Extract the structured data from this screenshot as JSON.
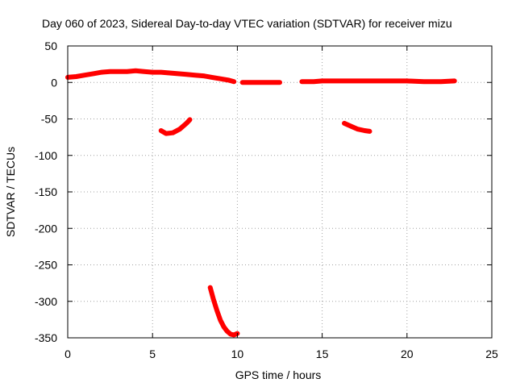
{
  "chart_data": {
    "type": "scatter",
    "title": "Day 060 of 2023, Sidereal Day-to-day VTEC variation (SDTVAR) for receiver mizu",
    "xlabel": "GPS time / hours",
    "ylabel": "SDTVAR / TECUs",
    "xlim": [
      0,
      25
    ],
    "ylim": [
      -350,
      50
    ],
    "xticks": [
      0,
      5,
      10,
      15,
      20,
      25
    ],
    "xtick_labels": [
      "0",
      "5",
      "10",
      "15",
      "20",
      "25"
    ],
    "yticks": [
      50,
      0,
      -50,
      -100,
      -150,
      -200,
      -250,
      -300,
      -350
    ],
    "ytick_labels": [
      "50",
      "0",
      "-50",
      "-100",
      "-150",
      "-200",
      "-250",
      "-300",
      "-350"
    ],
    "grid": true,
    "series_color": "#ff0000",
    "series": [
      {
        "name": "segment-1",
        "x": [
          0.0,
          0.5,
          1.0,
          1.5,
          2.0,
          2.5,
          3.0,
          3.5,
          4.0,
          4.5,
          5.0,
          5.5,
          6.0,
          6.5,
          7.0,
          7.5,
          8.0,
          8.5,
          9.0,
          9.5,
          9.8
        ],
        "y": [
          7,
          8,
          10,
          12,
          14,
          15,
          15,
          15,
          16,
          15,
          14,
          14,
          13,
          12,
          11,
          10,
          9,
          7,
          5,
          3,
          1
        ]
      },
      {
        "name": "segment-2",
        "x": [
          10.3,
          11.0,
          11.5,
          12.0,
          12.5
        ],
        "y": [
          0,
          0,
          0,
          0,
          0
        ]
      },
      {
        "name": "segment-3",
        "x": [
          13.8,
          14.5,
          15.0,
          16.0,
          17.0,
          18.0,
          19.0,
          20.0,
          21.0,
          22.0,
          22.8
        ],
        "y": [
          1,
          1,
          2,
          2,
          2,
          2,
          2,
          2,
          1,
          1,
          2
        ]
      },
      {
        "name": "segment-4",
        "x": [
          5.5,
          5.8,
          6.2,
          6.6,
          7.0,
          7.2
        ],
        "y": [
          -66,
          -70,
          -69,
          -64,
          -56,
          -51
        ]
      },
      {
        "name": "segment-5",
        "x": [
          16.3,
          16.7,
          17.1,
          17.5,
          17.8
        ],
        "y": [
          -56,
          -60,
          -64,
          -66,
          -67
        ]
      },
      {
        "name": "segment-6",
        "x": [
          8.4,
          8.6,
          8.8,
          9.0,
          9.2,
          9.4,
          9.6,
          9.8,
          10.0
        ],
        "y": [
          -281,
          -298,
          -313,
          -326,
          -335,
          -341,
          -345,
          -346,
          -344
        ]
      }
    ]
  }
}
